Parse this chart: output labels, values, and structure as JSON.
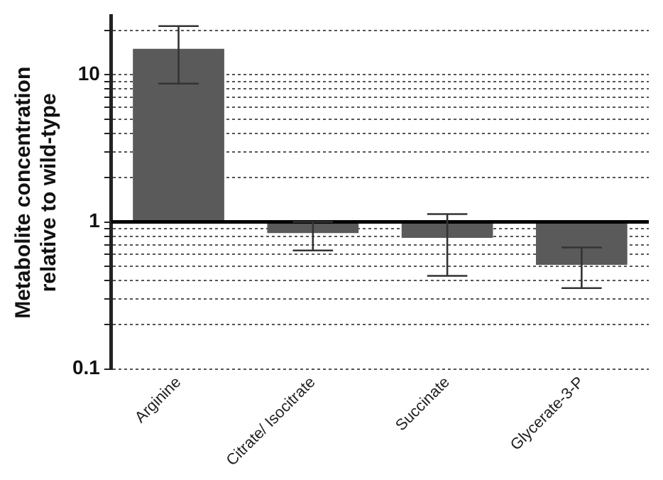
{
  "chart_data": {
    "type": "bar",
    "ylabel": "Metabolite concentration relative to wild-type",
    "categories": [
      "Arginine",
      "Citrate/ Isocitrate",
      "Succinate",
      "Glycerate-3-P"
    ],
    "base": [
      1,
      1,
      1,
      1
    ],
    "values": [
      14,
      -0.16,
      -0.22,
      -0.49
    ],
    "errors": [
      [
        8.7,
        21.4
      ],
      [
        0.64,
        1.0
      ],
      [
        0.43,
        1.13
      ],
      [
        0.355,
        0.67
      ]
    ],
    "color": "#5a5a5a",
    "log": "y",
    "ylim": [
      0.1,
      25
    ],
    "yticks": [
      0.1,
      {
        "value": 0.2,
        "label": null
      },
      {
        "value": 0.3,
        "label": null
      },
      {
        "value": 0.4,
        "label": null
      },
      {
        "value": 0.5,
        "label": null
      },
      {
        "value": 0.6,
        "label": null
      },
      {
        "value": 0.7,
        "label": null
      },
      {
        "value": 0.8,
        "label": null
      },
      {
        "value": 0.9,
        "label": null
      },
      1,
      {
        "value": 2,
        "label": null
      },
      {
        "value": 3,
        "label": null
      },
      {
        "value": 4,
        "label": null
      },
      {
        "value": 5,
        "label": null
      },
      {
        "value": 6,
        "label": null
      },
      {
        "value": 7,
        "label": null
      },
      {
        "value": 8,
        "label": null
      },
      {
        "value": 9,
        "label": null
      },
      10,
      {
        "value": 20,
        "label": null
      }
    ],
    "grid": "y",
    "ref_lines": [
      {
        "axis": "y",
        "value": 1,
        "color": "#000000"
      }
    ]
  }
}
